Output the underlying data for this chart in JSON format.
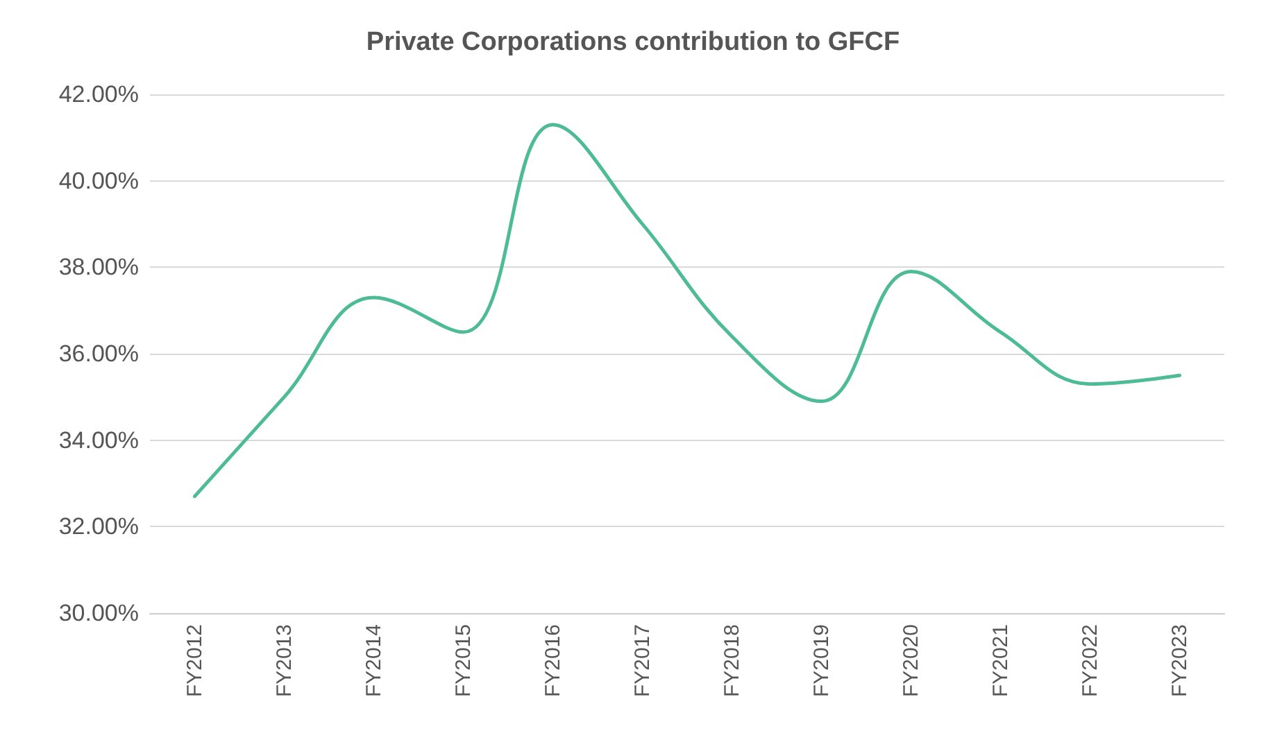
{
  "chart_data": {
    "type": "line",
    "title": "Private Corporations contribution to GFCF",
    "categories": [
      "FY2012",
      "FY2013",
      "FY2014",
      "FY2015",
      "FY2016",
      "FY2017",
      "FY2018",
      "FY2019",
      "FY2020",
      "FY2021",
      "FY2022",
      "FY2023"
    ],
    "series": [
      {
        "color": "#4dbb93",
        "values": [
          32.7,
          35.0,
          37.3,
          36.5,
          41.3,
          39.0,
          36.4,
          34.9,
          37.9,
          36.5,
          35.3,
          35.5
        ]
      }
    ],
    "ylim": [
      30,
      42
    ],
    "yticks": [
      {
        "value": 30,
        "label": "30.00%"
      },
      {
        "value": 32,
        "label": "32.00%"
      },
      {
        "value": 34,
        "label": "34.00%"
      },
      {
        "value": 36,
        "label": "36.00%"
      },
      {
        "value": 38,
        "label": "38.00%"
      },
      {
        "value": 40,
        "label": "40.00%"
      },
      {
        "value": 42,
        "label": "42.00%"
      }
    ],
    "grid": "y",
    "marker": "none",
    "line_style": "solid"
  }
}
